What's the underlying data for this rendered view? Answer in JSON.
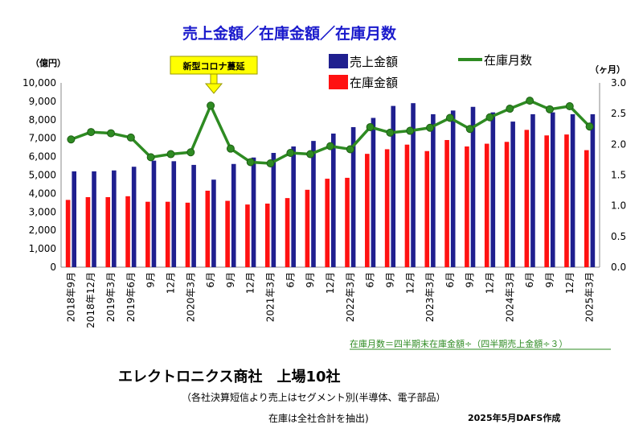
{
  "chart_data": {
    "type": "bar+line",
    "title": "売上金額／在庫金額／在庫月数",
    "left_axis_unit": "（億円）",
    "right_axis_unit": "（ヶ月）",
    "left_ylim": [
      0,
      10000
    ],
    "right_ylim": [
      0,
      3.0
    ],
    "left_ticks": [
      "0",
      "1,000",
      "2,000",
      "3,000",
      "4,000",
      "5,000",
      "6,000",
      "7,000",
      "8,000",
      "9,000",
      "10,000"
    ],
    "right_ticks": [
      "0.0",
      "0.5",
      "1.0",
      "1.5",
      "2.0",
      "2.5",
      "3.0"
    ],
    "categories": [
      "2018年9月",
      "2018年12月",
      "2019年3月",
      "2019年6月",
      "9月",
      "12月",
      "2020年3月",
      "6月",
      "9月",
      "12月",
      "2021年3月",
      "6月",
      "9月",
      "12月",
      "2022年3月",
      "6月",
      "9月",
      "12月",
      "2023年3月",
      "6月",
      "9月",
      "12月",
      "2024年3月",
      "6月",
      "9月",
      "12月",
      "2025年3月"
    ],
    "series": [
      {
        "name": "売上金額",
        "type": "bar",
        "axis": "left",
        "color": "#1f1f8f",
        "values": [
          5200,
          5200,
          5250,
          5450,
          5780,
          5750,
          5550,
          4750,
          5600,
          5950,
          6200,
          6550,
          6850,
          7250,
          7600,
          8100,
          8750,
          8900,
          8300,
          8500,
          8700,
          8400,
          7900,
          8300,
          8400,
          8300,
          8300
        ]
      },
      {
        "name": "在庫金額",
        "type": "bar",
        "axis": "left",
        "color": "#ff1111",
        "values": [
          3650,
          3800,
          3800,
          3850,
          3550,
          3550,
          3500,
          4150,
          3600,
          3400,
          3450,
          3750,
          4200,
          4800,
          4850,
          6150,
          6400,
          6650,
          6300,
          6900,
          6550,
          6700,
          6800,
          7450,
          7150,
          7200,
          6350
        ]
      },
      {
        "name": "在庫月数",
        "type": "line",
        "axis": "right",
        "color": "#2e8b22",
        "values": [
          2.08,
          2.2,
          2.18,
          2.11,
          1.79,
          1.84,
          1.87,
          2.63,
          1.93,
          1.71,
          1.69,
          1.86,
          1.84,
          1.97,
          1.92,
          2.28,
          2.19,
          2.22,
          2.27,
          2.43,
          2.25,
          2.44,
          2.58,
          2.71,
          2.57,
          2.62,
          2.29
        ]
      }
    ],
    "annotation": "新型コロナ蔓延",
    "annotation_category_index": 7,
    "formula_note": "在庫月数＝四半期末在庫金額÷（四半期売上金額÷３）",
    "subtitle": "エレクトロニクス商社　上場10社",
    "note1": "（各社決算短信より売上はセグメント別(半導体、電子部品）",
    "note2": "在庫は全社合計を抽出)",
    "credit": "2025年5月DAFS作成",
    "legend_placement": "top-center",
    "grid": false
  }
}
